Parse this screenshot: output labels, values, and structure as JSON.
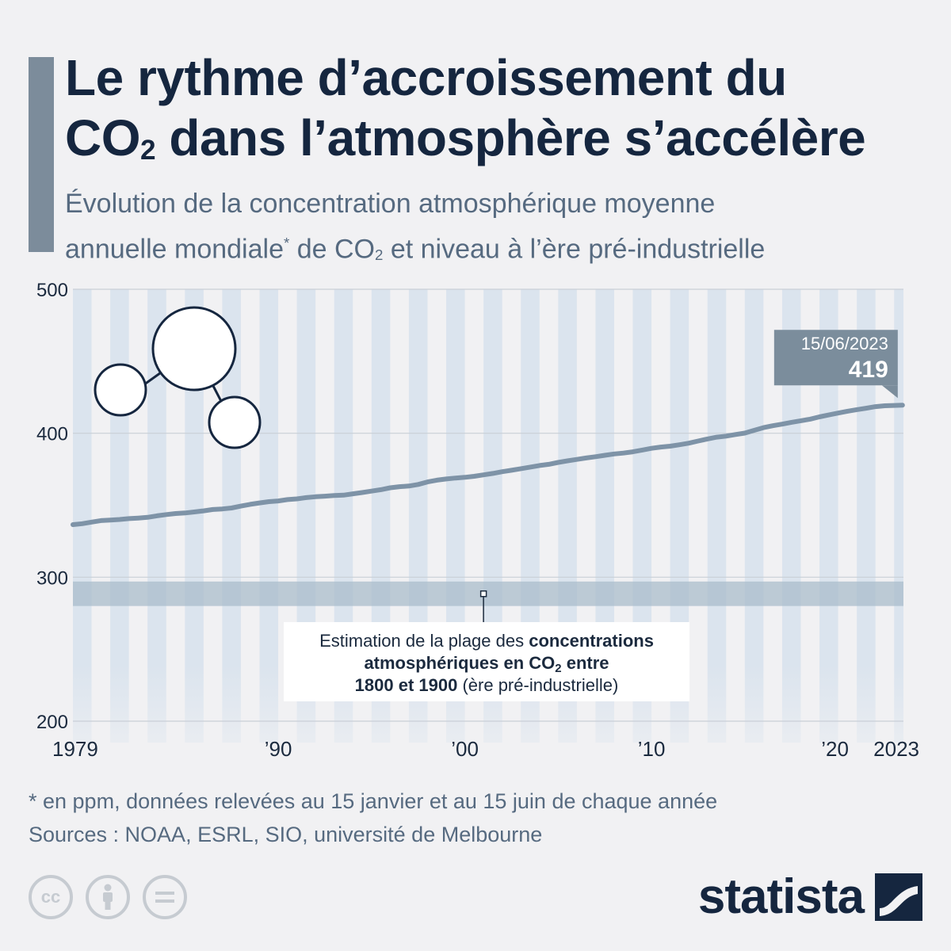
{
  "header": {
    "title_line1": "Le rythme d’accroissement du",
    "title_line2_pre": "CO",
    "title_line2_sub": "2",
    "title_line2_post": " dans l’atmosphère s’accélère",
    "subtitle_line1": "Évolution de la concentration atmosphérique moyenne",
    "subtitle_line2_a": "annuelle mondiale",
    "subtitle_line2_sup": "*",
    "subtitle_line2_b": " de CO",
    "subtitle_line2_sub": "2",
    "subtitle_line2_c": " et niveau à l’ère pré-industrielle"
  },
  "chart_data": {
    "type": "line",
    "x_range": [
      1979,
      2023.5
    ],
    "y_range": [
      200,
      500
    ],
    "y_ticks": [
      200,
      300,
      400,
      500
    ],
    "y_tick_labels": [
      "200",
      "300",
      "400",
      "500"
    ],
    "x_ticks": [
      1979,
      1990,
      2000,
      2010,
      2020,
      2023
    ],
    "x_tick_labels": [
      "1979",
      "’90",
      "’00",
      "’10",
      "’20",
      "2023"
    ],
    "grid": "horizontal",
    "series": [
      {
        "x": [
          1979,
          1979.5,
          1980,
          1980.5,
          1981,
          1981.5,
          1982,
          1982.5,
          1983,
          1983.5,
          1984,
          1984.5,
          1985,
          1985.5,
          1986,
          1986.5,
          1987,
          1987.5,
          1988,
          1988.5,
          1989,
          1989.5,
          1990,
          1990.5,
          1991,
          1991.5,
          1992,
          1992.5,
          1993,
          1993.5,
          1994,
          1994.5,
          1995,
          1995.5,
          1996,
          1996.5,
          1997,
          1997.5,
          1998,
          1998.5,
          1999,
          1999.5,
          2000,
          2000.5,
          2001,
          2001.5,
          2002,
          2002.5,
          2003,
          2003.5,
          2004,
          2004.5,
          2005,
          2005.5,
          2006,
          2006.5,
          2007,
          2007.5,
          2008,
          2008.5,
          2009,
          2009.5,
          2010,
          2010.5,
          2011,
          2011.5,
          2012,
          2012.5,
          2013,
          2013.5,
          2014,
          2014.5,
          2015,
          2015.5,
          2016,
          2016.5,
          2017,
          2017.5,
          2018,
          2018.5,
          2019,
          2019.5,
          2020,
          2020.5,
          2021,
          2021.5,
          2022,
          2022.5,
          2023,
          2023.45
        ],
        "values": [
          336.5,
          337.2,
          338.3,
          339.3,
          339.7,
          340.1,
          340.7,
          341.1,
          341.6,
          342.6,
          343.5,
          344.2,
          344.6,
          345.3,
          346.1,
          347.0,
          347.4,
          348.1,
          349.4,
          350.6,
          351.6,
          352.5,
          353.0,
          353.9,
          354.4,
          355.3,
          355.9,
          356.3,
          356.7,
          357.0,
          357.9,
          358.8,
          359.8,
          360.8,
          362.1,
          362.9,
          363.3,
          364.4,
          366.2,
          367.4,
          368.2,
          368.9,
          369.4,
          370.1,
          371.1,
          372.1,
          373.3,
          374.3,
          375.4,
          376.5,
          377.6,
          378.4,
          379.7,
          380.8,
          381.8,
          382.8,
          383.7,
          384.7,
          385.6,
          386.2,
          387.1,
          388.3,
          389.5,
          390.4,
          391.0,
          392.0,
          393.1,
          394.6,
          396.0,
          397.3,
          398.0,
          399.1,
          400.1,
          402.0,
          403.9,
          405.2,
          406.3,
          407.6,
          408.7,
          409.8,
          411.4,
          412.7,
          414.0,
          415.3,
          416.4,
          417.4,
          418.5,
          419.1,
          419.3,
          419.5
        ]
      }
    ],
    "band": {
      "y0": 280,
      "y1": 297
    },
    "band_annotation": {
      "x": 2001,
      "line1_normal": "Estimation de la plage des ",
      "line1_bold": "concentrations",
      "line2_bold_pre": "atmosphériques en CO",
      "line2_bold_sub": "2",
      "line2_bold_post": " entre",
      "line3_bold": "1800 et 1900",
      "line3_normal": " (ère pré-industrielle)"
    },
    "callout": {
      "date": "15/06/2023",
      "value": "419"
    },
    "colors": {
      "line": "#7e93a7",
      "band": "#a9bccb",
      "stripe": "#dbe4ee",
      "callout": "#7b8d9c"
    },
    "icon": "co2-molecule-icon"
  },
  "footer": {
    "footnote": "* en ppm, données relevées au 15 janvier et au 15 juin de chaque année",
    "source": "Sources : NOAA, ESRL, SIO, université de Melbourne",
    "brand": "statista",
    "license_cc": "cc"
  }
}
